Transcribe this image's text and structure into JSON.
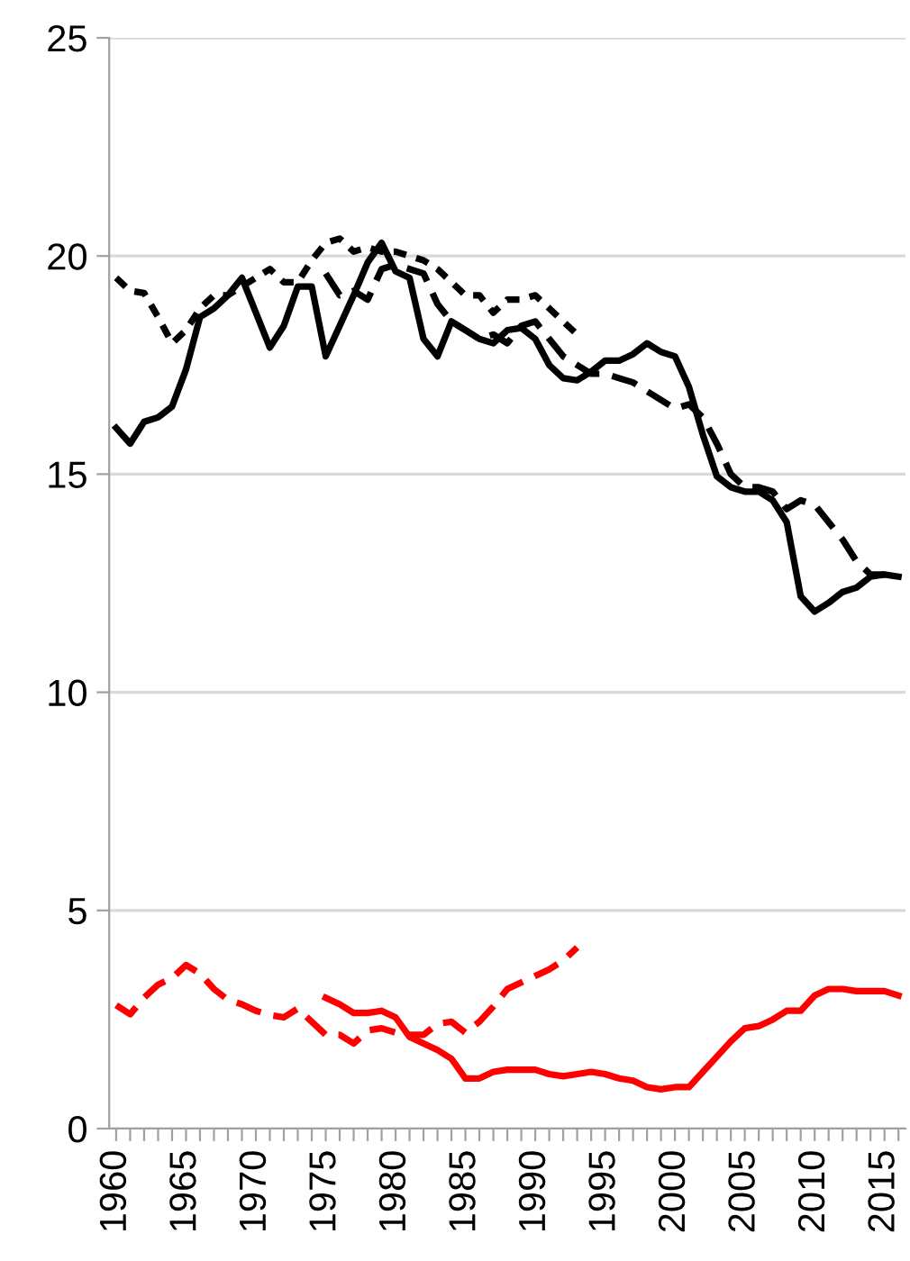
{
  "chart_data": {
    "type": "line",
    "categories": [
      "1960",
      null,
      null,
      null,
      null,
      "1965",
      null,
      null,
      null,
      null,
      "1970",
      null,
      null,
      null,
      null,
      "1975",
      null,
      null,
      null,
      null,
      "1980",
      null,
      null,
      null,
      null,
      "1985",
      null,
      null,
      null,
      null,
      "1990",
      null,
      null,
      null,
      null,
      "1995",
      null,
      null,
      null,
      null,
      "2000",
      null,
      null,
      null,
      null,
      "2005",
      null,
      null,
      null,
      null,
      "2010",
      null,
      null,
      null,
      null,
      "2015",
      null
    ],
    "ylim": [
      0,
      25
    ],
    "yticks": [
      0,
      5,
      10,
      15,
      20,
      25
    ],
    "grid": "y",
    "legend": false,
    "series": [
      {
        "color": "#000000",
        "line_style": "solid",
        "values": [
          16.06,
          15.7,
          16.2,
          16.3,
          16.55,
          17.4,
          18.6,
          18.8,
          19.1,
          19.5,
          18.7,
          17.9,
          18.4,
          19.3,
          19.3,
          17.7,
          18.4,
          19.1,
          19.85,
          20.3,
          19.65,
          19.5,
          18.1,
          17.7,
          18.5,
          18.3,
          18.1,
          18.0,
          18.3,
          18.35,
          18.1,
          17.5,
          17.2,
          17.15,
          17.35,
          17.6,
          17.6,
          17.75,
          18.0,
          17.8,
          17.7,
          17.0,
          15.9,
          14.95,
          14.7,
          14.6,
          14.6,
          14.4,
          13.9,
          12.2,
          11.85,
          12.05,
          12.3,
          12.4,
          12.65,
          12.7,
          12.65
        ]
      },
      {
        "color": "#000000",
        "line_style": "dotted",
        "values": [
          19.5,
          19.2,
          19.15,
          18.6,
          18.0,
          18.3,
          18.8,
          19.1,
          19.1,
          19.3,
          19.5,
          19.7,
          19.4,
          19.4,
          19.9,
          20.3,
          20.4,
          20.1,
          20.2,
          20.1,
          20.1,
          20.0,
          19.9,
          19.7,
          19.4,
          19.1,
          19.1,
          18.7,
          19.0,
          19.0,
          19.1,
          18.8,
          18.5,
          18.2,
          null,
          null,
          null,
          null,
          null,
          null,
          null,
          null,
          null,
          null,
          null,
          null,
          null,
          null,
          null,
          null,
          null,
          null,
          null,
          null,
          null,
          null,
          null
        ]
      },
      {
        "color": "#000000",
        "line_style": "dashed",
        "values": [
          null,
          null,
          null,
          null,
          null,
          null,
          null,
          null,
          null,
          null,
          null,
          null,
          null,
          null,
          null,
          19.6,
          19.1,
          19.2,
          19.0,
          19.7,
          19.8,
          19.7,
          19.6,
          18.9,
          18.5,
          18.3,
          18.1,
          18.2,
          18.0,
          18.4,
          18.5,
          18.1,
          17.7,
          17.5,
          17.3,
          17.3,
          17.2,
          17.1,
          16.9,
          16.7,
          16.5,
          16.6,
          16.3,
          15.7,
          15.0,
          14.7,
          14.7,
          14.6,
          14.2,
          14.4,
          14.3,
          13.9,
          13.5,
          13.0,
          12.7,
          12.7,
          null
        ]
      },
      {
        "color": "#ff0000",
        "line_style": "solid",
        "values": [
          null,
          null,
          null,
          null,
          null,
          null,
          null,
          null,
          null,
          null,
          null,
          null,
          null,
          null,
          null,
          3.0,
          2.85,
          2.65,
          2.65,
          2.7,
          2.55,
          2.1,
          1.95,
          1.8,
          1.6,
          1.15,
          1.15,
          1.3,
          1.35,
          1.35,
          1.35,
          1.25,
          1.2,
          1.25,
          1.3,
          1.25,
          1.15,
          1.1,
          0.95,
          0.9,
          0.95,
          0.95,
          1.3,
          1.65,
          2.0,
          2.3,
          2.35,
          2.5,
          2.7,
          2.7,
          3.05,
          3.2,
          3.2,
          3.15,
          3.15,
          3.15,
          3.05
        ]
      },
      {
        "color": "#ff0000",
        "line_style": "dashed",
        "values": [
          2.83,
          2.62,
          3.0,
          3.3,
          3.45,
          3.75,
          3.55,
          3.2,
          2.95,
          2.85,
          2.7,
          2.6,
          2.55,
          2.75,
          2.45,
          2.15,
          2.15,
          1.95,
          2.25,
          2.3,
          2.2,
          2.15,
          2.15,
          2.4,
          2.45,
          2.2,
          2.45,
          2.8,
          3.2,
          3.35,
          3.5,
          3.65,
          3.85,
          4.15,
          null,
          null,
          null,
          null,
          null,
          null,
          null,
          null,
          null,
          null,
          null,
          null,
          null,
          null,
          null,
          null,
          null,
          null,
          null,
          null,
          null,
          null,
          null
        ]
      }
    ]
  }
}
